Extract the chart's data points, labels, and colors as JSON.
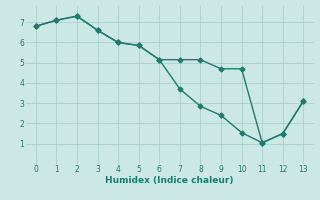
{
  "xlabel": "Humidex (Indice chaleur)",
  "background_color": "#cce8e4",
  "grid_color": "#aacfca",
  "line_color": "#1e7b6e",
  "xlim": [
    -0.5,
    13.5
  ],
  "ylim": [
    0.0,
    7.8
  ],
  "xticks": [
    0,
    1,
    2,
    3,
    4,
    5,
    6,
    7,
    8,
    9,
    10,
    11,
    12,
    13
  ],
  "yticks": [
    1,
    2,
    3,
    4,
    5,
    6,
    7
  ],
  "line1_x": [
    0,
    1,
    2,
    3,
    4,
    5,
    6,
    7,
    8,
    9,
    10,
    11,
    12,
    13
  ],
  "line1_y": [
    6.8,
    7.1,
    7.3,
    6.6,
    6.0,
    5.85,
    5.15,
    3.7,
    2.85,
    2.4,
    1.55,
    1.05,
    1.5,
    3.1
  ],
  "line2_x": [
    0,
    1,
    2,
    3,
    4,
    5,
    6,
    7,
    8,
    9,
    10,
    11,
    12,
    13
  ],
  "line2_y": [
    6.8,
    7.1,
    7.3,
    6.6,
    6.0,
    5.85,
    5.15,
    5.15,
    5.15,
    4.7,
    4.7,
    1.05,
    1.5,
    3.1
  ],
  "marker_size": 2.5,
  "line_width": 1.0
}
